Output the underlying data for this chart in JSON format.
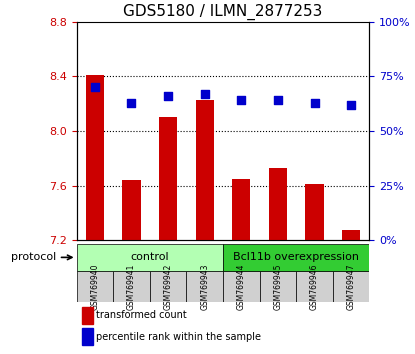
{
  "title": "GDS5180 / ILMN_2877253",
  "samples": [
    "GSM769940",
    "GSM769941",
    "GSM769942",
    "GSM769943",
    "GSM769944",
    "GSM769945",
    "GSM769946",
    "GSM769947"
  ],
  "transformed_counts": [
    8.41,
    7.64,
    8.1,
    8.23,
    7.65,
    7.73,
    7.61,
    7.28
  ],
  "percentile_ranks": [
    70,
    63,
    66,
    67,
    64,
    64,
    63,
    62
  ],
  "groups": [
    "control",
    "control",
    "control",
    "control",
    "Bcl11b overexpression",
    "Bcl11b overexpression",
    "Bcl11b overexpression",
    "Bcl11b overexpression"
  ],
  "ylim_left": [
    7.2,
    8.8
  ],
  "ylim_right": [
    0,
    100
  ],
  "yticks_left": [
    7.2,
    7.6,
    8.0,
    8.4,
    8.8
  ],
  "yticks_right": [
    0,
    25,
    50,
    75,
    100
  ],
  "bar_color": "#cc0000",
  "dot_color": "#0000cc",
  "bar_bottom": 7.2,
  "group_colors": {
    "control": "#b3ffb3",
    "Bcl11b overexpression": "#33cc33"
  },
  "left_axis_color": "#cc0000",
  "right_axis_color": "#0000cc",
  "group_label": "protocol",
  "legend_bar": "transformed count",
  "legend_dot": "percentile rank within the sample"
}
